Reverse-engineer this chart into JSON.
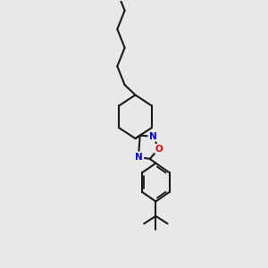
{
  "background_color": "#e8e8e8",
  "bond_color": "#1a1a1a",
  "N_color": "#0000ee",
  "O_color": "#ee0000",
  "line_width": 1.5,
  "font_size_hetero": 7.5,
  "figsize": [
    3.0,
    3.0
  ],
  "dpi": 100,
  "xlim": [
    0,
    10
  ],
  "ylim": [
    0,
    10
  ]
}
